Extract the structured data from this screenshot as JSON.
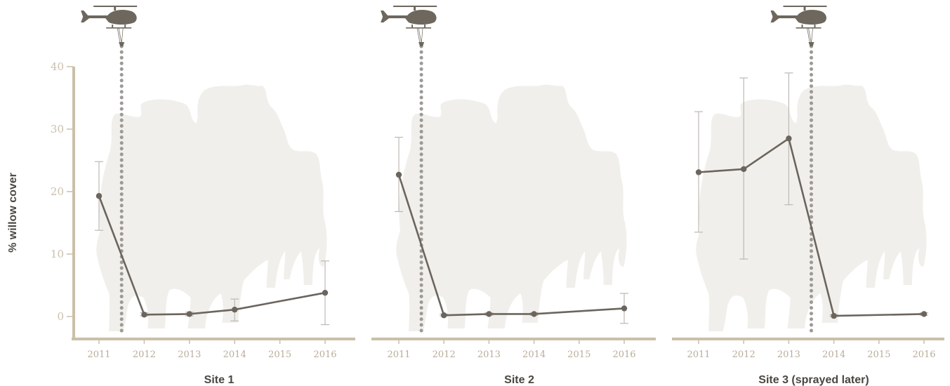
{
  "colors": {
    "line": "#6b655d",
    "axis": "#cbbfa8",
    "tick_text": "#c9bfae",
    "errorbar": "#bdb9b3",
    "spray_line": "#9d9a95",
    "silhouette": "#f1efeb",
    "helicopter": "#6d675d",
    "title": "#4a4641"
  },
  "icons": [
    "helicopter-icon",
    "moose-silhouette"
  ],
  "chart_data": [
    {
      "type": "line",
      "title": "Site 1",
      "ylabel": "% willow cover",
      "x_ticks": [
        "2011",
        "2012",
        "2013",
        "2014",
        "2015",
        "2016"
      ],
      "y_ticks": [
        "0",
        "10",
        "20",
        "30",
        "40"
      ],
      "ylim": [
        0,
        40
      ],
      "xlim": [
        2011,
        2016
      ],
      "spray_after": 2011.5,
      "series": [
        {
          "x": [
            2011,
            2012,
            2013,
            2014,
            2016
          ],
          "y": [
            19.3,
            0.3,
            0.4,
            1.1,
            3.8
          ],
          "err_low": [
            13.8,
            0.1,
            0.1,
            -0.7,
            -1.3
          ],
          "err_high": [
            24.8,
            0.6,
            0.7,
            2.8,
            8.9
          ]
        }
      ]
    },
    {
      "type": "line",
      "title": "Site 2",
      "ylabel": "",
      "x_ticks": [
        "2011",
        "2012",
        "2013",
        "2014",
        "2015",
        "2016"
      ],
      "y_ticks": [],
      "ylim": [
        0,
        40
      ],
      "xlim": [
        2011,
        2016
      ],
      "spray_after": 2011.5,
      "series": [
        {
          "x": [
            2011,
            2012,
            2013,
            2014,
            2016
          ],
          "y": [
            22.7,
            0.2,
            0.4,
            0.4,
            1.3
          ],
          "err_low": [
            16.8,
            0.1,
            0.2,
            0.2,
            -1.1
          ],
          "err_high": [
            28.7,
            0.4,
            0.6,
            0.6,
            3.7
          ]
        }
      ]
    },
    {
      "type": "line",
      "title": "Site 3 (sprayed later)",
      "ylabel": "",
      "x_ticks": [
        "2011",
        "2012",
        "2013",
        "2014",
        "2015",
        "2016"
      ],
      "y_ticks": [],
      "ylim": [
        0,
        40
      ],
      "xlim": [
        2011,
        2016
      ],
      "spray_after": 2013.5,
      "series": [
        {
          "x": [
            2011,
            2012,
            2013,
            2014,
            2016
          ],
          "y": [
            23.1,
            23.6,
            28.5,
            0.1,
            0.4
          ],
          "err_low": [
            13.5,
            9.2,
            17.9,
            0.0,
            0.2
          ],
          "err_high": [
            32.8,
            38.2,
            39.0,
            0.3,
            0.6
          ]
        }
      ]
    }
  ]
}
